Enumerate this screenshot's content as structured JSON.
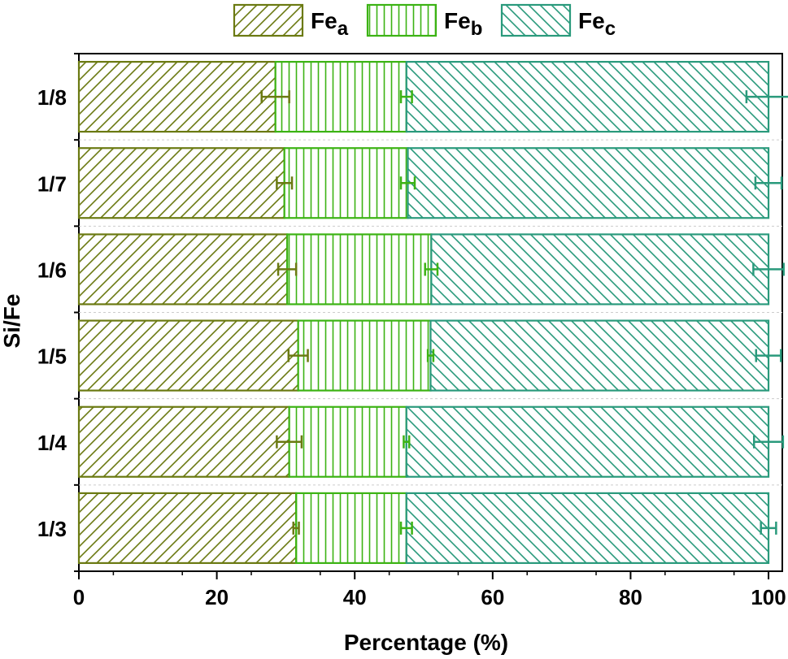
{
  "chart_data": {
    "type": "bar",
    "orientation": "horizontal",
    "stacked": true,
    "categories": [
      "1/3",
      "1/4",
      "1/5",
      "1/6",
      "1/7",
      "1/8"
    ],
    "series": [
      {
        "name": "Fe",
        "subscript": "a",
        "color": "#6b7a12",
        "pattern": "diagonal-up",
        "values": [
          31.5,
          30.5,
          31.8,
          30.2,
          29.8,
          28.5
        ],
        "errors": [
          0.4,
          1.8,
          1.4,
          1.3,
          1.1,
          2.0
        ]
      },
      {
        "name": "Fe",
        "subscript": "b",
        "color": "#3cb314",
        "pattern": "vertical",
        "values": [
          16.0,
          17.0,
          19.2,
          20.9,
          17.9,
          19.0
        ],
        "errors": [
          0.8,
          0.4,
          0.4,
          0.9,
          1.0,
          0.8
        ]
      },
      {
        "name": "Fe",
        "subscript": "c",
        "color": "#2a9a7c",
        "pattern": "diagonal-down",
        "values": [
          52.5,
          52.5,
          49.0,
          48.9,
          52.3,
          52.5
        ],
        "errors": [
          1.1,
          2.1,
          1.8,
          2.2,
          1.9,
          3.2
        ]
      }
    ],
    "xlabel": "Percentage (%)",
    "ylabel": "Si/Fe",
    "xlim": [
      0,
      102
    ],
    "xticks": [
      0,
      20,
      40,
      60,
      80,
      100
    ],
    "xtick_labels": [
      "0",
      "20",
      "40",
      "60",
      "80",
      "100"
    ],
    "legend_position": "top",
    "grid": false
  }
}
